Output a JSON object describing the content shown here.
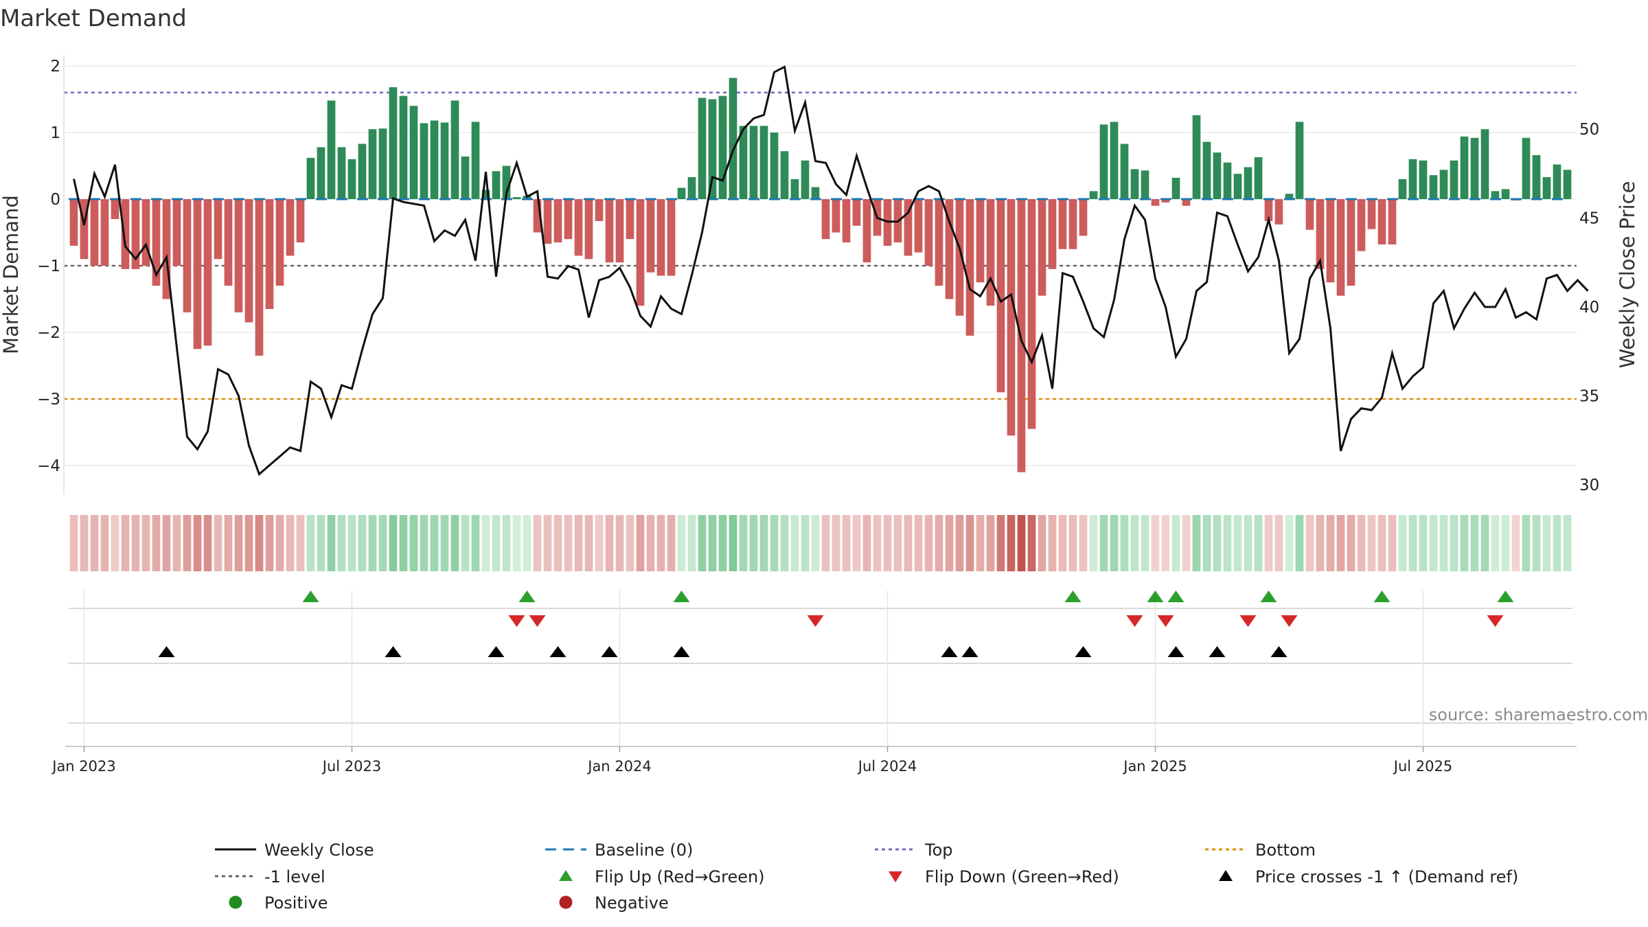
{
  "chart_data": {
    "type": "bar",
    "title": "Market Demand",
    "ylabel_left": "Market Demand",
    "ylabel_right": "Weekly Close Price",
    "ylim_left": [
      -4.4,
      2.2
    ],
    "yticks_left": [
      2,
      1,
      0,
      -1,
      -2,
      -3,
      -4
    ],
    "ytick_labels_left": [
      "2",
      "1",
      "0",
      "−1",
      "−2",
      "−3",
      "−4"
    ],
    "ylim_right": [
      28.5,
      54.5
    ],
    "yticks_right": [
      50,
      45,
      40,
      35,
      30
    ],
    "ytick_labels_right": [
      "50",
      "45",
      "40",
      "35",
      "30"
    ],
    "reference_lines": {
      "top": 1.6,
      "bottom": -3.0,
      "minus_one": -1.0,
      "baseline": 0
    },
    "x_tick_labels": [
      "Jan 2023",
      "Jul 2023",
      "Jan 2024",
      "Jul 2024",
      "Jan 2025",
      "Jul 2025"
    ],
    "x_tick_weeks": [
      1.5,
      27.5,
      53.5,
      79.5,
      105.5,
      131.5
    ],
    "demand": [
      -0.7,
      -0.9,
      -1.0,
      -1.0,
      -0.3,
      -1.05,
      -1.05,
      -1.0,
      -1.3,
      -1.5,
      -1.0,
      -1.7,
      -2.25,
      -2.2,
      -0.9,
      -1.3,
      -1.7,
      -1.85,
      -2.35,
      -1.65,
      -1.3,
      -0.85,
      -0.65,
      0.62,
      0.78,
      1.48,
      0.78,
      0.6,
      0.83,
      1.05,
      1.06,
      1.68,
      1.55,
      1.4,
      1.14,
      1.18,
      1.15,
      1.48,
      0.64,
      1.16,
      0.14,
      0.42,
      0.5,
      0.03,
      0.05,
      -0.5,
      -0.67,
      -0.65,
      -0.6,
      -0.85,
      -0.9,
      -0.33,
      -0.95,
      -0.95,
      -0.6,
      -1.6,
      -1.1,
      -1.15,
      -1.15,
      0.17,
      0.33,
      1.52,
      1.5,
      1.55,
      1.82,
      1.1,
      1.1,
      1.1,
      1.0,
      0.72,
      0.3,
      0.58,
      0.18,
      -0.6,
      -0.5,
      -0.65,
      -0.4,
      -0.95,
      -0.55,
      -0.7,
      -0.65,
      -0.85,
      -0.8,
      -1.0,
      -1.3,
      -1.5,
      -1.75,
      -2.05,
      -1.25,
      -1.6,
      -2.9,
      -3.55,
      -4.1,
      -3.45,
      -1.45,
      -1.05,
      -0.75,
      -0.75,
      -0.55,
      0.12,
      1.12,
      1.16,
      0.83,
      0.45,
      0.43,
      -0.1,
      -0.05,
      0.32,
      -0.1,
      1.26,
      0.86,
      0.7,
      0.55,
      0.38,
      0.48,
      0.63,
      -0.33,
      -0.38,
      0.08,
      1.16,
      -0.46,
      -1.05,
      -1.25,
      -1.45,
      -1.3,
      -0.78,
      -0.45,
      -0.68,
      -0.68,
      0.3,
      0.6,
      0.58,
      0.36,
      0.44,
      0.58,
      0.94,
      0.92,
      1.05,
      0.12,
      0.15,
      -0.02,
      0.92,
      0.66,
      0.33,
      0.52,
      0.44
    ],
    "price": [
      47.2,
      44.6,
      47.5,
      46.2,
      48.0,
      43.4,
      42.7,
      43.5,
      41.8,
      42.8,
      37.7,
      32.7,
      32.0,
      33.0,
      36.5,
      36.2,
      35.0,
      32.2,
      30.6,
      31.1,
      31.6,
      32.1,
      31.9,
      35.8,
      35.4,
      33.8,
      35.6,
      35.4,
      37.6,
      39.6,
      40.5,
      46.1,
      45.9,
      45.8,
      45.7,
      43.7,
      44.3,
      44.0,
      44.9,
      42.6,
      47.6,
      41.7,
      46.4,
      48.1,
      46.2,
      46.5,
      41.7,
      41.6,
      42.3,
      42.1,
      39.4,
      41.5,
      41.7,
      42.2,
      41.1,
      39.5,
      38.9,
      40.6,
      39.9,
      39.6,
      41.8,
      44.2,
      47.3,
      47.1,
      48.8,
      50.0,
      50.6,
      50.8,
      53.2,
      53.5,
      49.9,
      51.5,
      48.2,
      48.1,
      46.9,
      46.3,
      48.5,
      46.7,
      45.0,
      44.8,
      44.8,
      45.3,
      46.5,
      46.8,
      46.5,
      44.8,
      43.3,
      41.0,
      40.6,
      41.6,
      40.3,
      40.7,
      38.1,
      36.9,
      38.4,
      35.4,
      41.9,
      41.7,
      40.3,
      38.8,
      38.3,
      40.4,
      43.8,
      45.7,
      44.9,
      41.6,
      40.0,
      37.2,
      38.2,
      40.9,
      41.4,
      45.3,
      45.1,
      43.5,
      42.0,
      42.8,
      44.9,
      42.6,
      37.4,
      38.2,
      41.6,
      42.6,
      38.8,
      31.9,
      33.7,
      34.3,
      34.2,
      34.9,
      37.4,
      35.4,
      36.1,
      36.6,
      40.2,
      40.9,
      38.8,
      39.9,
      40.8,
      40.0,
      40.0,
      41.0,
      39.4,
      39.7,
      39.3,
      41.6,
      41.8,
      40.9,
      41.5,
      40.9
    ],
    "flip_up_weeks": [
      23,
      44,
      59,
      97,
      105,
      107,
      116,
      127,
      139
    ],
    "flip_down_weeks": [
      43,
      45,
      72,
      103,
      106,
      114,
      118,
      138
    ],
    "price_cross_weeks": [
      9,
      31,
      41,
      47,
      52,
      59,
      85,
      87,
      98,
      107,
      111,
      117
    ],
    "legend": {
      "weekly_close": "Weekly Close",
      "baseline": "Baseline (0)",
      "top": "Top",
      "bottom": "Bottom",
      "minus_one": "-1 level",
      "flip_up": "Flip Up (Red→Green)",
      "flip_down": "Flip Down (Green→Red)",
      "price_cross": "Price crosses -1 ↑ (Demand ref)",
      "positive": "Positive",
      "negative": "Negative"
    },
    "source": "source: sharemaestro.com"
  },
  "colors": {
    "positive": "#2e8b57",
    "negative": "#cd5c5c",
    "price": "#111111",
    "top": "#6b6bbf",
    "bottom": "#e08e0b",
    "minus_one": "#666666",
    "baseline": "#1f77b4",
    "flip_up": "#2ca02c",
    "flip_down": "#d62728",
    "cross": "#000000",
    "legend_positive": "#228b22",
    "legend_negative": "#b22222"
  }
}
